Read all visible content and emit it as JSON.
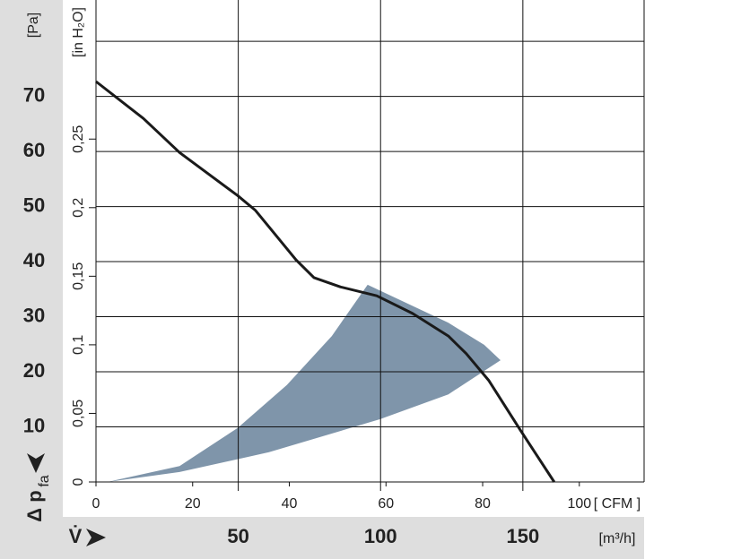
{
  "chart_data": {
    "type": "fan-curve",
    "y_label": "[Pa]",
    "y2_label": "[in H₂O]",
    "y_symbol": "Δ p",
    "y_symbol_sub": "fa",
    "x_label": "[ CFM ]",
    "x2_label": "[m³/h]",
    "x2_symbol": "V̇",
    "xlim": [
      0,
      113.4
    ],
    "xticks": [
      0,
      20,
      40,
      60,
      80,
      100
    ],
    "x2lim": [
      0,
      192.6
    ],
    "x2ticks": [
      50,
      100,
      150
    ],
    "ylim": [
      0,
      87.5
    ],
    "yticks": [
      10,
      20,
      30,
      40,
      50,
      60,
      70,
      {
        "value": 80,
        "label": null
      }
    ],
    "y2lim": [
      0,
      0.3514
    ],
    "y2ticks": [
      0,
      {
        "value": 0.05,
        "label": "0,05"
      },
      {
        "value": 0.1,
        "label": "0,1"
      },
      {
        "value": 0.15,
        "label": "0,15"
      },
      {
        "value": 0.2,
        "label": "0,2"
      },
      {
        "value": 0.25,
        "label": "0,25"
      }
    ],
    "grid": true,
    "series": [
      {
        "kind": "area",
        "color": "#7f95aa",
        "x": [
          2.4,
          17.3,
          29.3,
          39.5,
          48.8,
          56.2,
          72.9,
          80.3,
          83.7,
          72.9,
          58.8,
          35.8,
          17.3,
          2.4
        ],
        "values": [
          0,
          2.9,
          9.8,
          17.6,
          26.5,
          35.8,
          28.9,
          24.9,
          22.1,
          15.9,
          11.4,
          5.4,
          1.8,
          0
        ]
      },
      {
        "kind": "line",
        "color": "#1a1a1a",
        "x": [
          0,
          9.8,
          17.3,
          29.3,
          33,
          41.4,
          45.1,
          50.6,
          58.1,
          65.5,
          72.9,
          76.6,
          81.3,
          87.8,
          94.8
        ],
        "values": [
          72.7,
          66,
          59.8,
          52,
          49.3,
          40.3,
          37.1,
          35.4,
          33.8,
          30.6,
          26.5,
          23.3,
          18.4,
          9.4,
          0
        ]
      }
    ]
  }
}
